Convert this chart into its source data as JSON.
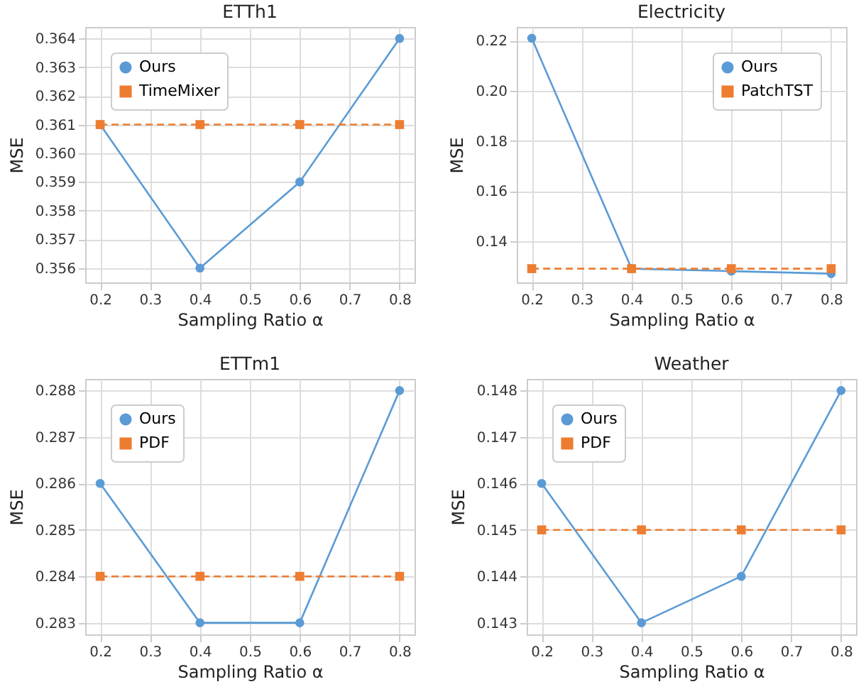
{
  "chart_data": [
    {
      "type": "line",
      "title": "ETTh1",
      "xlabel": "Sampling Ratio α",
      "ylabel": "MSE",
      "x": [
        0.2,
        0.4,
        0.6,
        0.8
      ],
      "xlim": [
        0.17,
        0.83
      ],
      "xticks": [
        0.2,
        0.3,
        0.4,
        0.5,
        0.6,
        0.7,
        0.8
      ],
      "ylim": [
        0.3555,
        0.3644
      ],
      "yticks": [
        0.356,
        0.357,
        0.358,
        0.359,
        {
          "value": 0.36,
          "label": "0.360"
        },
        0.361,
        0.362,
        0.363,
        0.364
      ],
      "grid": true,
      "legend": "top left",
      "series": [
        {
          "name": "Ours",
          "color": "#5b9bd5",
          "marker": "circle",
          "line_style": "solid",
          "values": [
            0.361,
            0.356,
            0.359,
            0.364
          ]
        },
        {
          "name": "TimeMixer",
          "color": "#ed7d31",
          "marker": "square",
          "line_style": "dashed",
          "values": [
            0.361,
            0.361,
            0.361,
            0.361
          ]
        }
      ]
    },
    {
      "type": "line",
      "title": "Electricity",
      "xlabel": "Sampling Ratio α",
      "ylabel": "MSE",
      "x": [
        0.2,
        0.4,
        0.6,
        0.8
      ],
      "xlim": [
        0.17,
        0.83
      ],
      "xticks": [
        0.2,
        0.3,
        0.4,
        0.5,
        0.6,
        0.7,
        0.8
      ],
      "ylim": [
        0.1235,
        0.2255
      ],
      "yticks": [
        0.14,
        0.16,
        0.18,
        {
          "value": 0.2,
          "label": "0.20"
        },
        0.22
      ],
      "grid": true,
      "legend": "top right",
      "series": [
        {
          "name": "Ours",
          "color": "#5b9bd5",
          "marker": "circle",
          "line_style": "solid",
          "values": [
            0.221,
            0.129,
            0.128,
            0.127
          ]
        },
        {
          "name": "PatchTST",
          "color": "#ed7d31",
          "marker": "square",
          "line_style": "dashed",
          "values": [
            0.129,
            0.129,
            0.129,
            0.129
          ]
        }
      ]
    },
    {
      "type": "line",
      "title": "ETTm1",
      "xlabel": "Sampling Ratio α",
      "ylabel": "MSE",
      "x": [
        0.2,
        0.4,
        0.6,
        0.8
      ],
      "xlim": [
        0.17,
        0.83
      ],
      "xticks": [
        0.2,
        0.3,
        0.4,
        0.5,
        0.6,
        0.7,
        0.8
      ],
      "ylim": [
        0.28275,
        0.28825
      ],
      "yticks": [
        0.283,
        0.284,
        0.285,
        0.286,
        0.287,
        0.288
      ],
      "grid": true,
      "legend": "top left",
      "series": [
        {
          "name": "Ours",
          "color": "#5b9bd5",
          "marker": "circle",
          "line_style": "solid",
          "values": [
            0.286,
            0.283,
            0.283,
            0.288
          ]
        },
        {
          "name": "PDF",
          "color": "#ed7d31",
          "marker": "square",
          "line_style": "dashed",
          "values": [
            0.284,
            0.284,
            0.284,
            0.284
          ]
        }
      ]
    },
    {
      "type": "line",
      "title": "Weather",
      "xlabel": "Sampling Ratio α",
      "ylabel": "MSE",
      "x": [
        0.2,
        0.4,
        0.6,
        0.8
      ],
      "xlim": [
        0.17,
        0.83
      ],
      "xticks": [
        0.2,
        0.3,
        0.4,
        0.5,
        0.6,
        0.7,
        0.8
      ],
      "ylim": [
        0.14275,
        0.14825
      ],
      "yticks": [
        0.143,
        0.144,
        0.145,
        0.146,
        0.147,
        0.148
      ],
      "grid": true,
      "legend": "top left",
      "series": [
        {
          "name": "Ours",
          "color": "#5b9bd5",
          "marker": "circle",
          "line_style": "solid",
          "values": [
            0.146,
            0.143,
            0.144,
            0.148
          ]
        },
        {
          "name": "PDF",
          "color": "#ed7d31",
          "marker": "square",
          "line_style": "dashed",
          "values": [
            0.145,
            0.145,
            0.145,
            0.145
          ]
        }
      ]
    }
  ]
}
